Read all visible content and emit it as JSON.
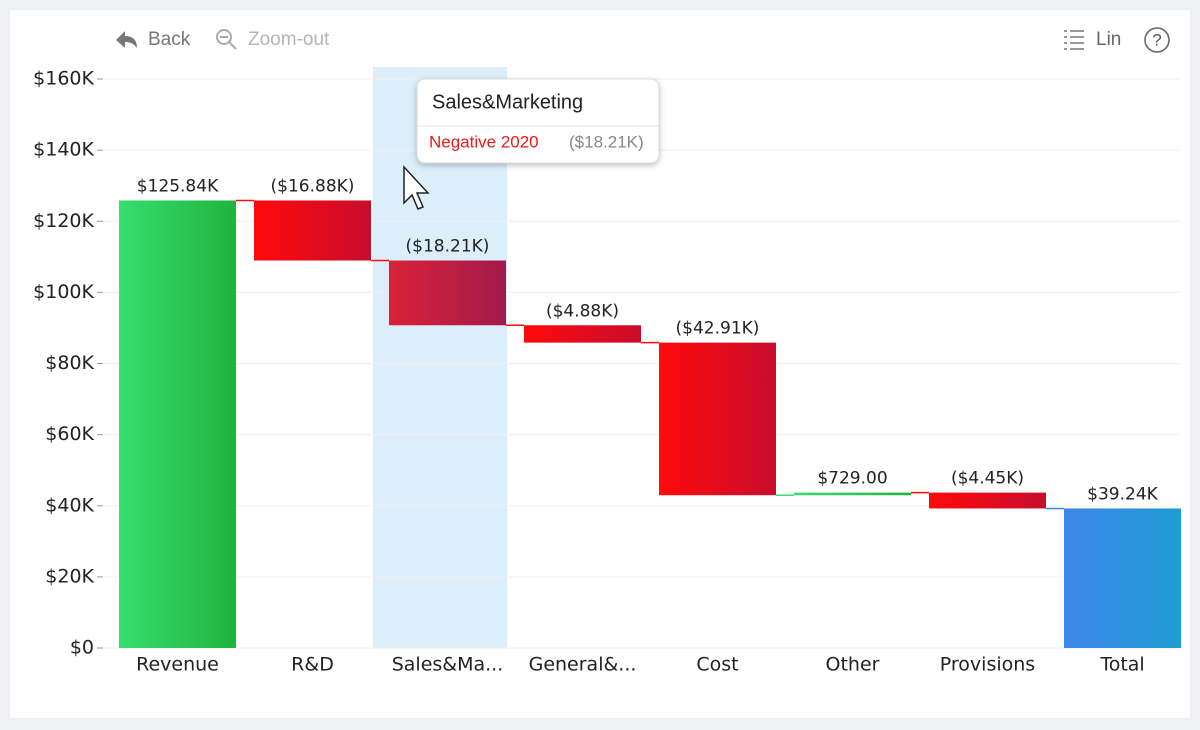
{
  "toolbar": {
    "back": "Back",
    "zoom_out": "Zoom-out",
    "scale": "Lin",
    "help": "?"
  },
  "chart_data": {
    "type": "waterfall",
    "categories": [
      "Revenue",
      "R&D",
      "Sales&Ma...",
      "General&...",
      "Cost",
      "Other",
      "Provisions",
      "Total"
    ],
    "values": [
      125840,
      -16880,
      -18210,
      -4880,
      -42910,
      729,
      -4450,
      39240
    ],
    "value_labels": [
      "$125.84K",
      "($16.88K)",
      "($18.21K)",
      "($4.88K)",
      "($42.91K)",
      "$729.00",
      "($4.45K)",
      "$39.24K"
    ],
    "colors": {
      "increase": [
        "#36de70",
        "#20b33c"
      ],
      "decrease": [
        "#ff0a0a",
        "#c80c2e"
      ],
      "total": [
        "#3d85e8",
        "#1f9dd4"
      ],
      "highlight": [
        "#d92238",
        "#a21a4c"
      ]
    },
    "highlighted_category": 2,
    "ylim": [
      0,
      160000
    ],
    "yticks": [
      {
        "value": 0,
        "label": "$0"
      },
      {
        "value": 20000,
        "label": "$20K"
      },
      {
        "value": 40000,
        "label": "$40K"
      },
      {
        "value": 60000,
        "label": "$60K"
      },
      {
        "value": 80000,
        "label": "$80K"
      },
      {
        "value": 100000,
        "label": "$100K"
      },
      {
        "value": 120000,
        "label": "$120K"
      },
      {
        "value": 140000,
        "label": "$140K"
      },
      {
        "value": 160000,
        "label": "$160K"
      }
    ],
    "grid": true,
    "tooltip": {
      "title": "Sales&Marketing",
      "series": "Negative 2020"
    }
  }
}
